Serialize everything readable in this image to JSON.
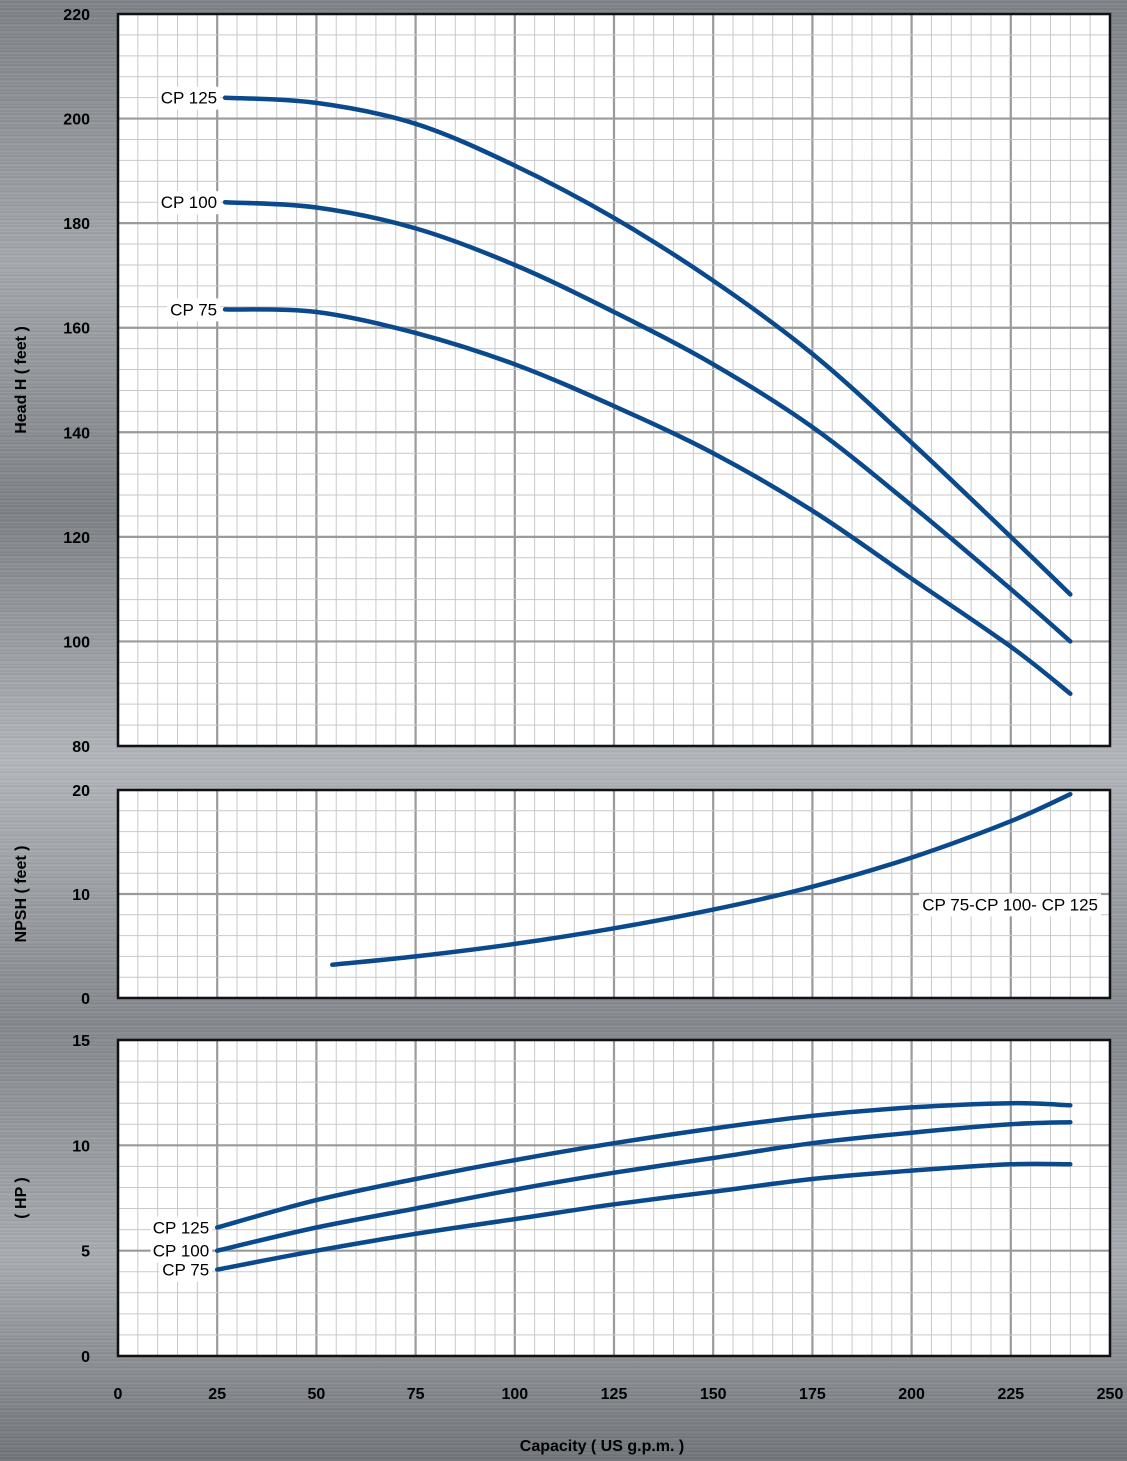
{
  "chart_data": [
    {
      "type": "line",
      "ylabel": "Head H ( feet )",
      "ylim": [
        80,
        220
      ],
      "yticks": [
        "80",
        "100",
        "120",
        "140",
        "160",
        "180",
        "200",
        "220"
      ],
      "xlim": [
        0,
        250
      ],
      "grid": true,
      "line_color": "#0a4a8c",
      "series": [
        {
          "name": "CP 125",
          "x": [
            27,
            50,
            75,
            100,
            125,
            150,
            175,
            200,
            225,
            240
          ],
          "y": [
            204,
            203,
            199,
            191,
            181,
            169,
            155,
            138,
            120,
            109
          ]
        },
        {
          "name": "CP 100",
          "x": [
            27,
            50,
            75,
            100,
            125,
            150,
            175,
            200,
            225,
            240
          ],
          "y": [
            184,
            183,
            179,
            172,
            163,
            153,
            141,
            126,
            110,
            100
          ]
        },
        {
          "name": "CP 75",
          "x": [
            27,
            50,
            75,
            100,
            125,
            150,
            175,
            200,
            225,
            240
          ],
          "y": [
            163.5,
            163,
            159,
            153,
            145,
            136,
            125,
            112,
            99,
            90
          ]
        }
      ]
    },
    {
      "type": "line",
      "ylabel": "NPSH ( feet )",
      "ylim": [
        0,
        20
      ],
      "yticks": [
        "0",
        "10",
        "20"
      ],
      "xlim": [
        0,
        250
      ],
      "grid": true,
      "line_color": "#0a4a8c",
      "series": [
        {
          "name": "CP 75-CP 100- CP 125",
          "x": [
            54,
            75,
            100,
            125,
            150,
            175,
            200,
            225,
            240
          ],
          "y": [
            3.2,
            4.0,
            5.2,
            6.7,
            8.5,
            10.7,
            13.5,
            17.0,
            19.6
          ]
        }
      ]
    },
    {
      "type": "line",
      "ylabel": "( HP )",
      "ylim": [
        0,
        15
      ],
      "yticks": [
        "0",
        "5",
        "10",
        "15"
      ],
      "xlabel": "Capacity ( US g.p.m. )",
      "xlim": [
        0,
        250
      ],
      "xticks": [
        "0",
        "25",
        "50",
        "75",
        "100",
        "125",
        "150",
        "175",
        "200",
        "225",
        "250"
      ],
      "grid": true,
      "line_color": "#0a4a8c",
      "series": [
        {
          "name": "CP 125",
          "x": [
            25,
            50,
            75,
            100,
            125,
            150,
            175,
            200,
            225,
            240
          ],
          "y": [
            6.1,
            7.4,
            8.4,
            9.3,
            10.1,
            10.8,
            11.4,
            11.8,
            12.0,
            11.9
          ]
        },
        {
          "name": "CP 100",
          "x": [
            25,
            50,
            75,
            100,
            125,
            150,
            175,
            200,
            225,
            240
          ],
          "y": [
            5.0,
            6.1,
            7.0,
            7.9,
            8.7,
            9.4,
            10.1,
            10.6,
            11.0,
            11.1
          ]
        },
        {
          "name": "CP 75",
          "x": [
            25,
            50,
            75,
            100,
            125,
            150,
            175,
            200,
            225,
            240
          ],
          "y": [
            4.1,
            5.0,
            5.8,
            6.5,
            7.2,
            7.8,
            8.4,
            8.8,
            9.1,
            9.1
          ]
        }
      ]
    }
  ]
}
